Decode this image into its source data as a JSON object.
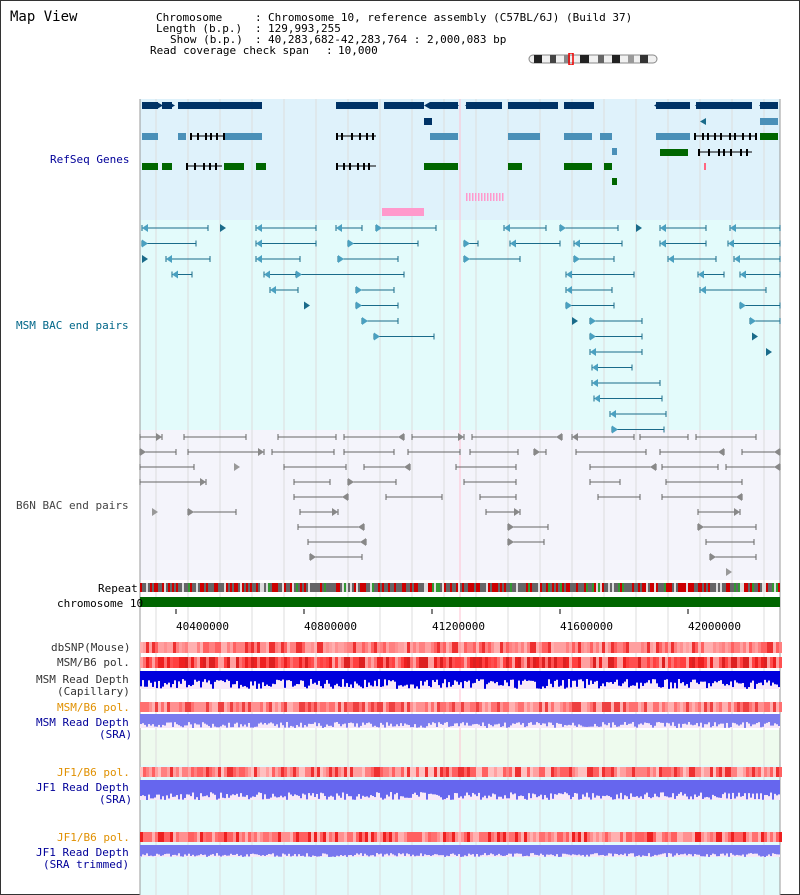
{
  "page": {
    "title": "Map View"
  },
  "header": {
    "lines": [
      {
        "key": "Chromosome",
        "sep": ":",
        "value": "Chromosome 10, reference assembly (C57BL/6J) (Build 37)"
      },
      {
        "key": "Length (b.p.)",
        "sep": ":",
        "value": "129,993,255"
      },
      {
        "key": "Show (b.p.)",
        "sep": ":",
        "value": "40,283,682-42,283,764 : 2,000,083 bp"
      },
      {
        "key": "Read coverage check span",
        "sep": ":",
        "value": "10,000"
      }
    ]
  },
  "tracks": {
    "refseq": "RefSeq Genes",
    "msm_bac": "MSM BAC end pairs",
    "b6n_bac": "B6N BAC end pairs",
    "repeat": "Repeat",
    "chromosome": "chromosome 10",
    "dbsnp": "dbSNP(Mouse)",
    "msm_b6_pol": "MSM/B6 pol.",
    "msm_depth_cap_1": "MSM Read Depth",
    "msm_depth_cap_2": "(Capillary)",
    "msm_b6_pol2": "MSM/B6 pol.",
    "msm_depth_sra_1": "MSM Read Depth",
    "msm_depth_sra_2": "(SRA)",
    "jf1_b6_pol": "JF1/B6 pol.",
    "jf1_depth_sra_1": "JF1 Read Depth",
    "jf1_depth_sra_2": "(SRA)",
    "jf1_b6_pol2": "JF1/B6 pol.",
    "jf1_depth_trim_1": "JF1 Read Depth",
    "jf1_depth_trim_2": "(SRA trimmed)"
  },
  "axis": {
    "ticks": [
      "40400000",
      "40800000",
      "41200000",
      "41600000",
      "42000000"
    ]
  },
  "colors": {
    "refseq_bg": "#dff2fb",
    "msm_bg": "#e3fbfb",
    "b6n_bg": "#f4f4fb",
    "navy": "#003366",
    "steel": "#4a90b8",
    "green": "#006600",
    "teal": "#1a6b8a",
    "gray": "#666666",
    "pink": "#ff99cc",
    "chrom_green": "#006600",
    "depth_blue": "#0000cc",
    "depth_lav": "#8888ee"
  }
}
